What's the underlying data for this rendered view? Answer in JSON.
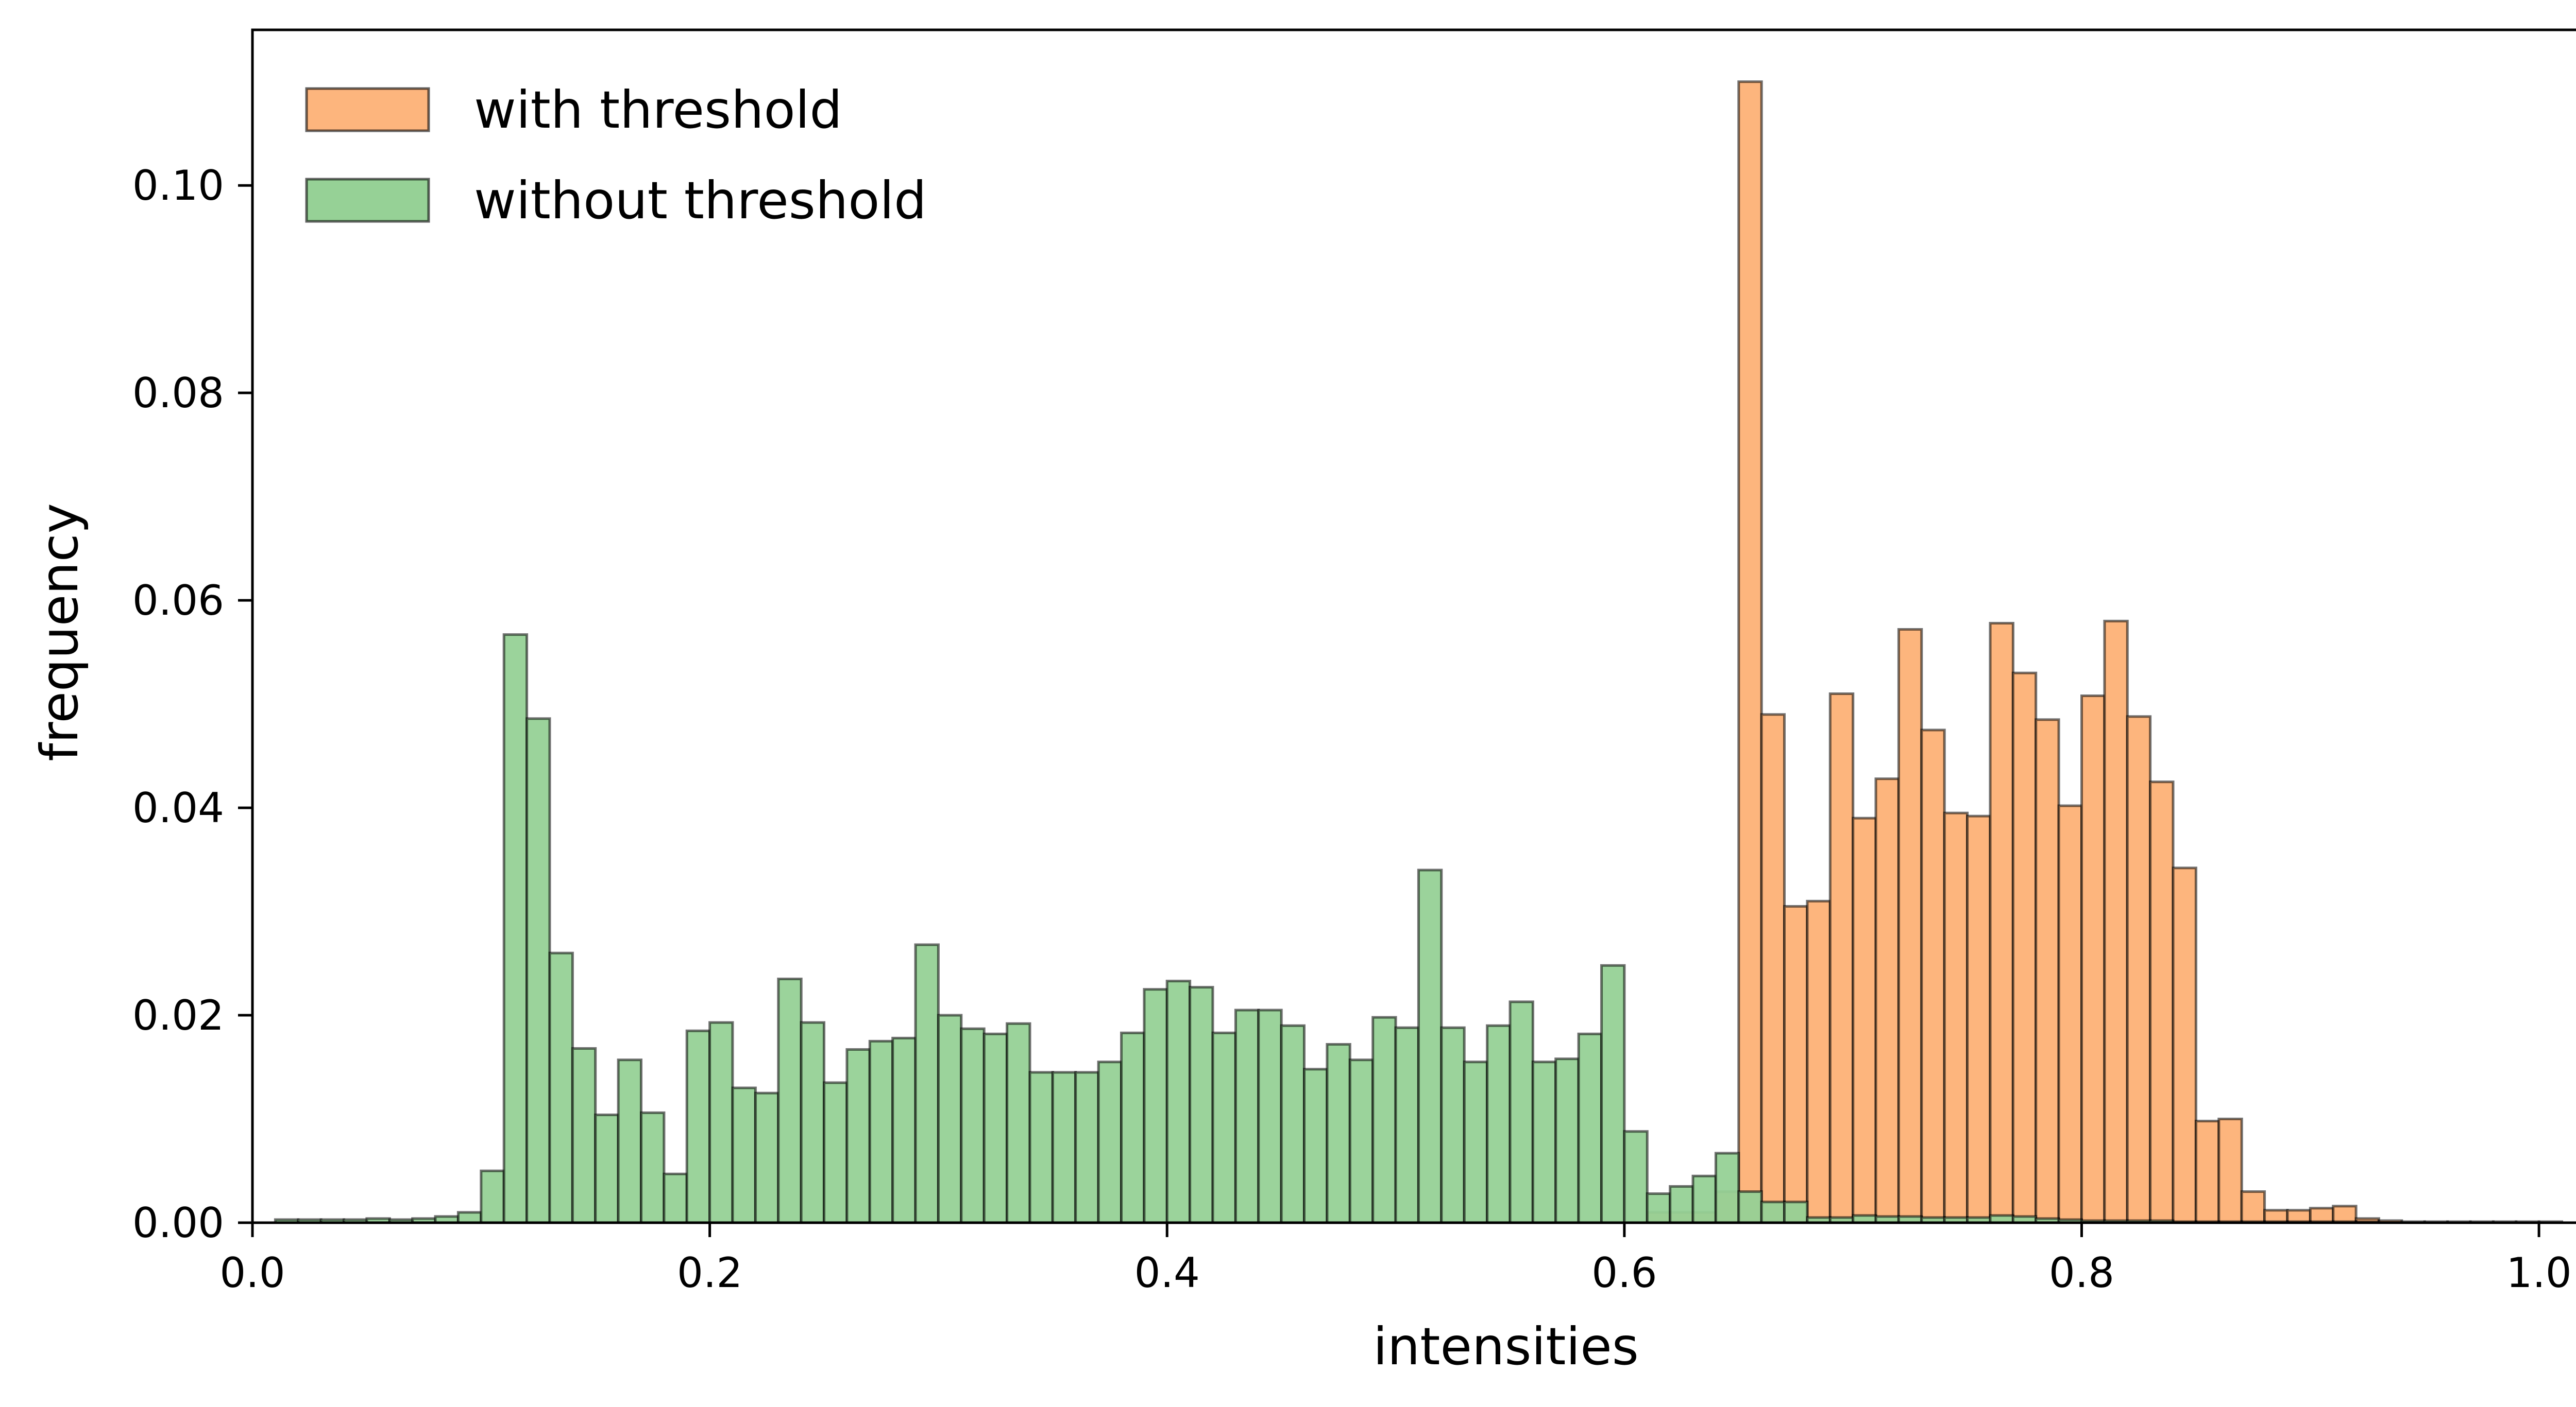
{
  "chart_data": {
    "type": "bar",
    "xlabel": "intensities",
    "ylabel": "frequency",
    "xlim": [
      0.0,
      1.05
    ],
    "ylim": [
      0.0,
      0.115
    ],
    "xticks": [
      "0.0",
      "0.2",
      "0.4",
      "0.6",
      "0.8",
      "1.0"
    ],
    "yticks": [
      "0.00",
      "0.02",
      "0.04",
      "0.06",
      "0.08",
      "0.10"
    ],
    "grid": false,
    "legend_position": "top-left",
    "bin_start": 0.01,
    "bin_width": 0.01,
    "series": [
      {
        "name": "with threshold",
        "color": "#fdb57d",
        "values": [
          0,
          0,
          0,
          0,
          0,
          0,
          0,
          0,
          0,
          0,
          0,
          0,
          0,
          0,
          0,
          0,
          0,
          0,
          0,
          0,
          0,
          0,
          0,
          0,
          0,
          0,
          0,
          0,
          0,
          0,
          0,
          0,
          0,
          0,
          0,
          0,
          0,
          0,
          0,
          0,
          0,
          0,
          0,
          0,
          0,
          0,
          0,
          0,
          0,
          0,
          0,
          0,
          0,
          0,
          0,
          0,
          0,
          0,
          0,
          0,
          0.001,
          0.001,
          0.001,
          0.003,
          0.11,
          0.049,
          0.0305,
          0.031,
          0.051,
          0.039,
          0.0428,
          0.0572,
          0.0475,
          0.0395,
          0.0392,
          0.0578,
          0.053,
          0.0485,
          0.0402,
          0.0508,
          0.058,
          0.0488,
          0.0425,
          0.0342,
          0.0098,
          0.01,
          0.003,
          0.0012,
          0.0012,
          0.0014,
          0.0016,
          0.0004,
          0.0002,
          0.0001,
          0.0001,
          0.0001,
          0.0001,
          0.0001,
          0.0001,
          0.0001
        ]
      },
      {
        "name": "without threshold",
        "color": "#96d196",
        "values": [
          0.0003,
          0.0003,
          0.0003,
          0.0003,
          0.0004,
          0.0003,
          0.0004,
          0.0006,
          0.001,
          0.005,
          0.0567,
          0.0486,
          0.026,
          0.0168,
          0.0104,
          0.0157,
          0.0106,
          0.0047,
          0.0185,
          0.0193,
          0.013,
          0.0125,
          0.0235,
          0.0193,
          0.0135,
          0.0167,
          0.0175,
          0.0178,
          0.0268,
          0.02,
          0.0187,
          0.0182,
          0.0192,
          0.0145,
          0.0145,
          0.0145,
          0.0155,
          0.0183,
          0.0225,
          0.0233,
          0.0227,
          0.0183,
          0.0205,
          0.0205,
          0.019,
          0.0148,
          0.0172,
          0.0157,
          0.0198,
          0.0188,
          0.034,
          0.0188,
          0.0155,
          0.019,
          0.0213,
          0.0155,
          0.0158,
          0.0182,
          0.0248,
          0.0088,
          0.0028,
          0.0035,
          0.0045,
          0.0067,
          0.003,
          0.002,
          0.002,
          0.0005,
          0.0005,
          0.0007,
          0.0006,
          0.0006,
          0.0005,
          0.0005,
          0.0005,
          0.0007,
          0.0006,
          0.0004,
          0.0003,
          0.0002,
          0.0002,
          0.0002,
          0.0002,
          0.0001,
          0.0001,
          0.0001,
          0.0001,
          0.0001,
          0.0001,
          0.0001,
          0.0001,
          0.0001,
          0,
          0,
          0,
          0,
          0,
          0,
          0,
          0
        ]
      }
    ]
  }
}
